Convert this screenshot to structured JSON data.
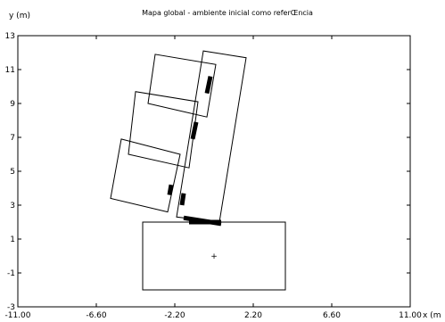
{
  "chart_data": {
    "type": "scatter",
    "title": "Mapa global - ambiente inicial como referŒncia",
    "xlabel": "x (m",
    "ylabel": "y (m)",
    "xlim": [
      -11,
      11
    ],
    "ylim": [
      -3,
      13
    ],
    "x_ticks": [
      "-11.00",
      "-6.60",
      "-2.20",
      "2.20",
      "6.60",
      "11.00"
    ],
    "y_ticks": [
      "-3",
      "-1",
      "1",
      "3",
      "5",
      "7",
      "9",
      "11",
      "13"
    ],
    "grid": false,
    "shapes": [
      {
        "name": "initial-room",
        "points": [
          [
            -4,
            -2
          ],
          [
            4,
            -2
          ],
          [
            4,
            2
          ],
          [
            -4,
            2
          ]
        ]
      },
      {
        "name": "corridor",
        "points": [
          [
            -2.1,
            2.3
          ],
          [
            -0.6,
            12.1
          ],
          [
            1.8,
            11.7
          ],
          [
            0.3,
            2.0
          ]
        ]
      },
      {
        "name": "room-upper",
        "points": [
          [
            -3.7,
            9.0
          ],
          [
            -3.3,
            11.9
          ],
          [
            0.1,
            11.3
          ],
          [
            -0.4,
            8.2
          ]
        ]
      },
      {
        "name": "room-middle",
        "points": [
          [
            -4.8,
            6.0
          ],
          [
            -4.4,
            9.7
          ],
          [
            -0.9,
            9.1
          ],
          [
            -1.4,
            5.2
          ]
        ]
      },
      {
        "name": "room-lower",
        "points": [
          [
            -5.8,
            3.4
          ],
          [
            -5.2,
            6.9
          ],
          [
            -1.9,
            6.0
          ],
          [
            -2.6,
            2.6
          ]
        ]
      }
    ],
    "doors": [
      {
        "name": "door-upper",
        "points": [
          [
            -0.4,
            9.6
          ],
          [
            -0.2,
            10.6
          ]
        ]
      },
      {
        "name": "door-middle",
        "points": [
          [
            -1.2,
            6.9
          ],
          [
            -1.0,
            7.9
          ]
        ]
      },
      {
        "name": "door-lower-left",
        "points": [
          [
            -2.5,
            3.6
          ],
          [
            -2.4,
            4.2
          ]
        ]
      },
      {
        "name": "door-lower-right",
        "points": [
          [
            -1.8,
            3.0
          ],
          [
            -1.7,
            3.7
          ]
        ]
      },
      {
        "name": "door-bottom",
        "points": [
          [
            -1.7,
            2.25
          ],
          [
            0.4,
            1.9
          ]
        ]
      },
      {
        "name": "door-bottom-sill",
        "points": [
          [
            -1.4,
            2.0
          ],
          [
            0.4,
            2.0
          ]
        ]
      }
    ],
    "marker": {
      "name": "origin-marker",
      "x": 0,
      "y": 0,
      "symbol": "+"
    }
  }
}
